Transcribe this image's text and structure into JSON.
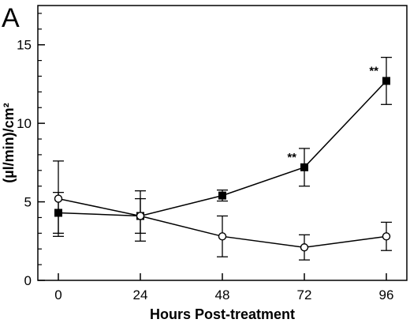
{
  "chart_data": {
    "type": "line",
    "panel_label": "A",
    "xlabel": "Hours Post-treatment",
    "ylabel": "(µl/min)/cm²",
    "x": [
      0,
      24,
      48,
      72,
      96
    ],
    "x_tick_labels": [
      "0",
      "24",
      "48",
      "72",
      "96"
    ],
    "xlim": [
      -6,
      102
    ],
    "ylim": [
      0,
      17.5
    ],
    "y_ticks": [
      0,
      5,
      10,
      15
    ],
    "y_tick_labels": [
      "0",
      "5",
      "10",
      "15"
    ],
    "y_minor_step": 1,
    "grid": false,
    "series": [
      {
        "marker": "filled-square",
        "values": [
          4.3,
          4.1,
          5.4,
          7.2,
          12.7
        ],
        "error": [
          1.3,
          1.6,
          0.35,
          1.2,
          1.5
        ]
      },
      {
        "marker": "open-circle",
        "values": [
          5.2,
          4.1,
          2.8,
          2.1,
          2.8
        ],
        "error": [
          2.4,
          1.1,
          1.3,
          0.8,
          0.9
        ]
      }
    ],
    "annotations": [
      {
        "x": 72,
        "y": 7.2,
        "text": "**"
      },
      {
        "x": 96,
        "y": 12.7,
        "text": "**"
      }
    ]
  }
}
